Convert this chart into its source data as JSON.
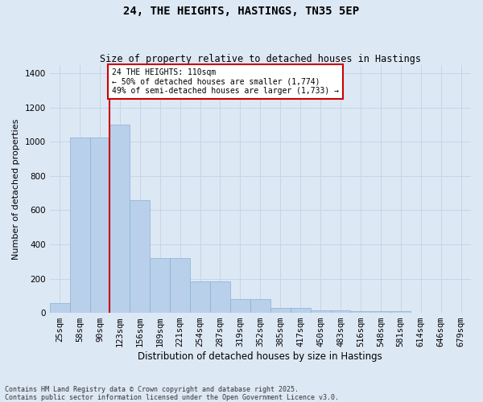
{
  "title1": "24, THE HEIGHTS, HASTINGS, TN35 5EP",
  "title2": "Size of property relative to detached houses in Hastings",
  "xlabel": "Distribution of detached houses by size in Hastings",
  "ylabel": "Number of detached properties",
  "categories": [
    "25sqm",
    "58sqm",
    "90sqm",
    "123sqm",
    "156sqm",
    "189sqm",
    "221sqm",
    "254sqm",
    "287sqm",
    "319sqm",
    "352sqm",
    "385sqm",
    "417sqm",
    "450sqm",
    "483sqm",
    "516sqm",
    "548sqm",
    "581sqm",
    "614sqm",
    "646sqm",
    "679sqm"
  ],
  "values": [
    55,
    1025,
    1025,
    1100,
    660,
    320,
    320,
    185,
    185,
    80,
    80,
    30,
    30,
    15,
    15,
    12,
    12,
    8,
    0,
    0,
    0
  ],
  "bar_color": "#b8d0ea",
  "bar_edge_color": "#8ab0d0",
  "grid_color": "#c8d4e8",
  "background_color": "#dde8f5",
  "vline_x_index": 2.5,
  "vline_color": "#cc0000",
  "annotation_text": "24 THE HEIGHTS: 110sqm\n← 50% of detached houses are smaller (1,774)\n49% of semi-detached houses are larger (1,733) →",
  "annotation_box_color": "#ffffff",
  "annotation_box_edge": "#cc0000",
  "footnote": "Contains HM Land Registry data © Crown copyright and database right 2025.\nContains public sector information licensed under the Open Government Licence v3.0.",
  "ylim": [
    0,
    1450
  ],
  "yticks": [
    0,
    200,
    400,
    600,
    800,
    1000,
    1200,
    1400
  ],
  "title1_fontsize": 10,
  "title2_fontsize": 8.5,
  "xlabel_fontsize": 8.5,
  "ylabel_fontsize": 8,
  "tick_fontsize": 7.5,
  "annot_fontsize": 7,
  "footnote_fontsize": 6
}
